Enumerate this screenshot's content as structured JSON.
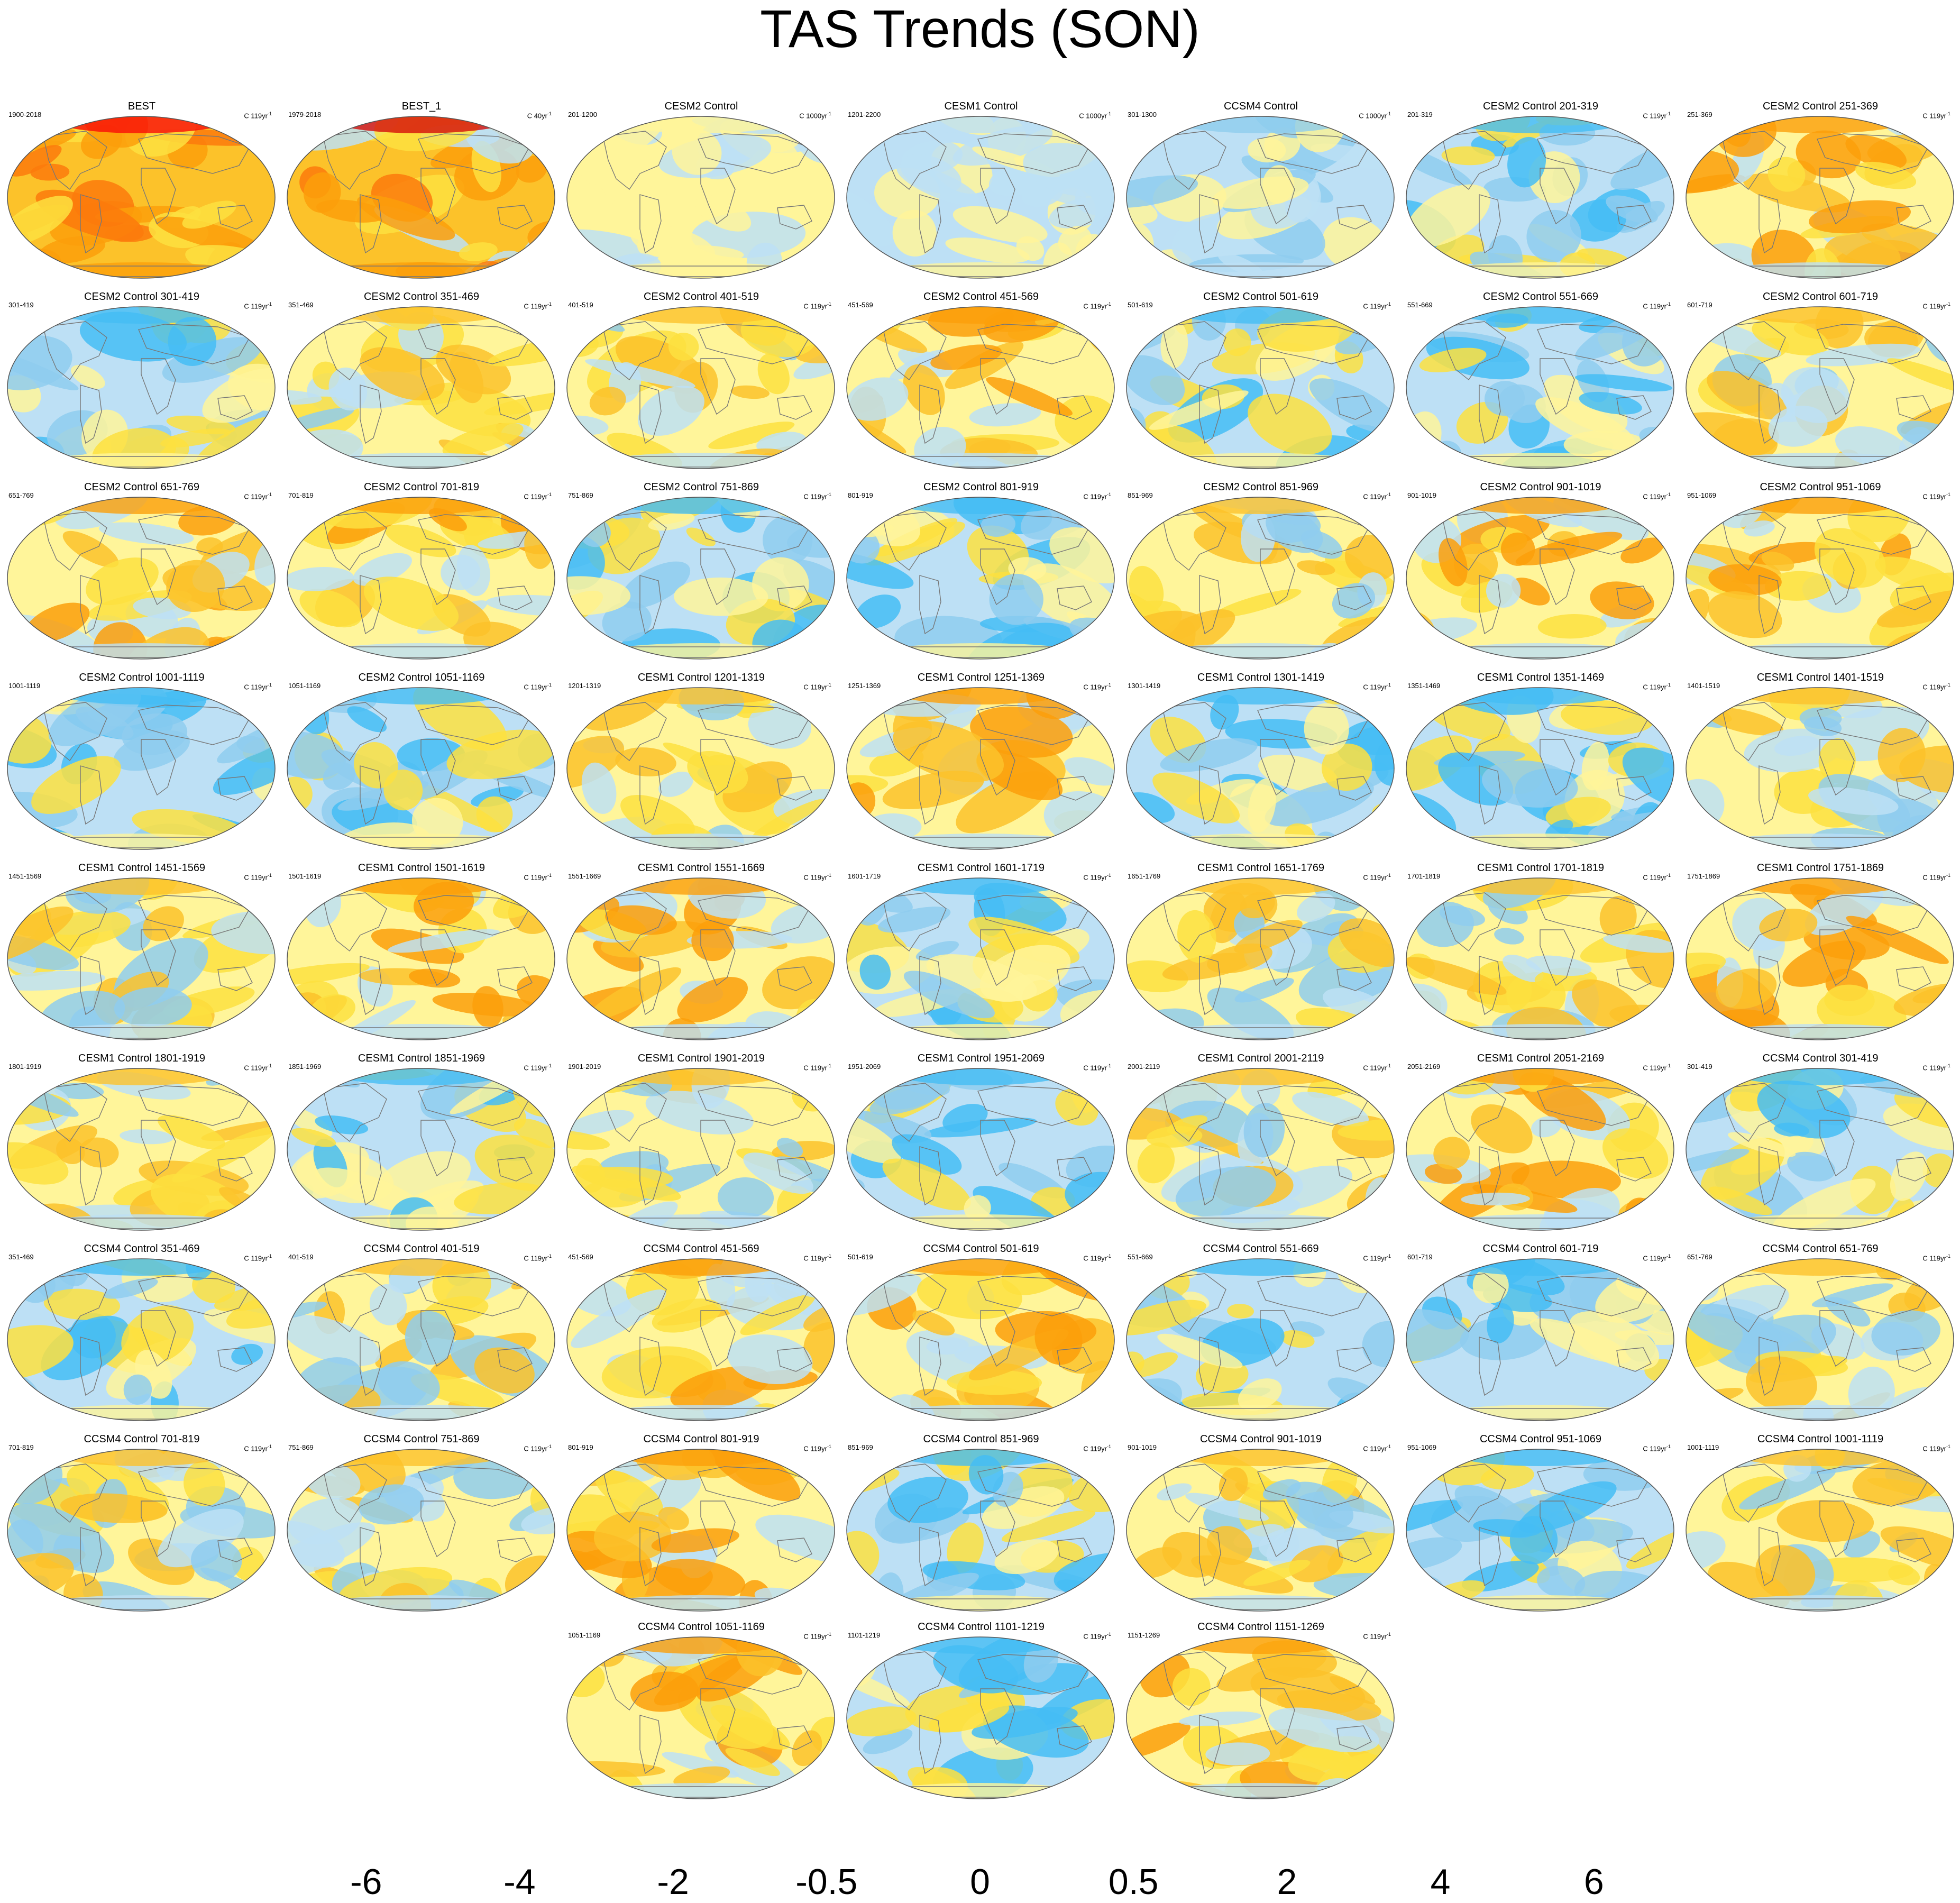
{
  "title": "TAS Trends (SON)",
  "panels": [
    {
      "title": "BEST",
      "left": "1900-2018",
      "right_unit": "C 119yr",
      "fill": "warm-strong"
    },
    {
      "title": "BEST_1",
      "left": "1979-2018",
      "right_unit": "C 40yr",
      "fill": "warm-strong2"
    },
    {
      "title": "CESM2 Control",
      "left": "201-1200",
      "right_unit": "C 1000yr",
      "fill": "pale-yellow"
    },
    {
      "title": "CESM1 Control",
      "left": "1201-2200",
      "right_unit": "C 1000yr",
      "fill": "mixed-pale"
    },
    {
      "title": "CCSM4 Control",
      "left": "301-1300",
      "right_unit": "C 1000yr",
      "fill": "cool-pale"
    },
    {
      "title": "CESM2 Control 201-319",
      "left": "201-319",
      "right_unit": "C 119yr",
      "fill": "cool"
    },
    {
      "title": "CESM2 Control 251-369",
      "left": "251-369",
      "right_unit": "C 119yr",
      "fill": "warmish"
    },
    {
      "title": "CESM2 Control 301-419",
      "left": "301-419",
      "right_unit": "C 119yr",
      "fill": "cool"
    },
    {
      "title": "CESM2 Control 351-469",
      "left": "351-469",
      "right_unit": "C 119yr",
      "fill": "mixed"
    },
    {
      "title": "CESM2 Control 401-519",
      "left": "401-519",
      "right_unit": "C 119yr",
      "fill": "mixed"
    },
    {
      "title": "CESM2 Control 451-569",
      "left": "451-569",
      "right_unit": "C 119yr",
      "fill": "warmish"
    },
    {
      "title": "CESM2 Control 501-619",
      "left": "501-619",
      "right_unit": "C 119yr",
      "fill": "cool"
    },
    {
      "title": "CESM2 Control 551-669",
      "left": "551-669",
      "right_unit": "C 119yr",
      "fill": "cool"
    },
    {
      "title": "CESM2 Control 601-719",
      "left": "601-719",
      "right_unit": "C 119yr",
      "fill": "mixed"
    },
    {
      "title": "CESM2 Control 651-769",
      "left": "651-769",
      "right_unit": "C 119yr",
      "fill": "warmish"
    },
    {
      "title": "CESM2 Control 701-819",
      "left": "701-819",
      "right_unit": "C 119yr",
      "fill": "warmish"
    },
    {
      "title": "CESM2 Control 751-869",
      "left": "751-869",
      "right_unit": "C 119yr",
      "fill": "cool"
    },
    {
      "title": "CESM2 Control 801-919",
      "left": "801-919",
      "right_unit": "C 119yr",
      "fill": "cool"
    },
    {
      "title": "CESM2 Control 851-969",
      "left": "851-969",
      "right_unit": "C 119yr",
      "fill": "mixed"
    },
    {
      "title": "CESM2 Control 901-1019",
      "left": "901-1019",
      "right_unit": "C 119yr",
      "fill": "warmish"
    },
    {
      "title": "CESM2 Control 951-1069",
      "left": "951-1069",
      "right_unit": "C 119yr",
      "fill": "warmish"
    },
    {
      "title": "CESM2 Control 1001-1119",
      "left": "1001-1119",
      "right_unit": "C 119yr",
      "fill": "cool"
    },
    {
      "title": "CESM2 Control 1051-1169",
      "left": "1051-1169",
      "right_unit": "C 119yr",
      "fill": "cool"
    },
    {
      "title": "CESM1 Control 1201-1319",
      "left": "1201-1319",
      "right_unit": "C 119yr",
      "fill": "mixed"
    },
    {
      "title": "CESM1 Control 1251-1369",
      "left": "1251-1369",
      "right_unit": "C 119yr",
      "fill": "warmish"
    },
    {
      "title": "CESM1 Control 1301-1419",
      "left": "1301-1419",
      "right_unit": "C 119yr",
      "fill": "cool"
    },
    {
      "title": "CESM1 Control 1351-1469",
      "left": "1351-1469",
      "right_unit": "C 119yr",
      "fill": "cool"
    },
    {
      "title": "CESM1 Control 1401-1519",
      "left": "1401-1519",
      "right_unit": "C 119yr",
      "fill": "mixed"
    },
    {
      "title": "CESM1 Control 1451-1569",
      "left": "1451-1569",
      "right_unit": "C 119yr",
      "fill": "mixed"
    },
    {
      "title": "CESM1 Control 1501-1619",
      "left": "1501-1619",
      "right_unit": "C 119yr",
      "fill": "warmish"
    },
    {
      "title": "CESM1 Control 1551-1669",
      "left": "1551-1669",
      "right_unit": "C 119yr",
      "fill": "warmish"
    },
    {
      "title": "CESM1 Control 1601-1719",
      "left": "1601-1719",
      "right_unit": "C 119yr",
      "fill": "cool"
    },
    {
      "title": "CESM1 Control 1651-1769",
      "left": "1651-1769",
      "right_unit": "C 119yr",
      "fill": "mixed"
    },
    {
      "title": "CESM1 Control 1701-1819",
      "left": "1701-1819",
      "right_unit": "C 119yr",
      "fill": "mixed"
    },
    {
      "title": "CESM1 Control 1751-1869",
      "left": "1751-1869",
      "right_unit": "C 119yr",
      "fill": "warmish"
    },
    {
      "title": "CESM1 Control 1801-1919",
      "left": "1801-1919",
      "right_unit": "C 119yr",
      "fill": "mixed"
    },
    {
      "title": "CESM1 Control 1851-1969",
      "left": "1851-1969",
      "right_unit": "C 119yr",
      "fill": "cool"
    },
    {
      "title": "CESM1 Control 1901-2019",
      "left": "1901-2019",
      "right_unit": "C 119yr",
      "fill": "mixed"
    },
    {
      "title": "CESM1 Control 1951-2069",
      "left": "1951-2069",
      "right_unit": "C 119yr",
      "fill": "cool"
    },
    {
      "title": "CESM1 Control 2001-2119",
      "left": "2001-2119",
      "right_unit": "C 119yr",
      "fill": "mixed"
    },
    {
      "title": "CESM1 Control 2051-2169",
      "left": "2051-2169",
      "right_unit": "C 119yr",
      "fill": "warmish"
    },
    {
      "title": "CCSM4 Control 301-419",
      "left": "301-419",
      "right_unit": "C 119yr",
      "fill": "cool"
    },
    {
      "title": "CCSM4 Control 351-469",
      "left": "351-469",
      "right_unit": "C 119yr",
      "fill": "cool"
    },
    {
      "title": "CCSM4 Control 401-519",
      "left": "401-519",
      "right_unit": "C 119yr",
      "fill": "mixed"
    },
    {
      "title": "CCSM4 Control 451-569",
      "left": "451-569",
      "right_unit": "C 119yr",
      "fill": "warmish"
    },
    {
      "title": "CCSM4 Control 501-619",
      "left": "501-619",
      "right_unit": "C 119yr",
      "fill": "warmish"
    },
    {
      "title": "CCSM4 Control 551-669",
      "left": "551-669",
      "right_unit": "C 119yr",
      "fill": "cool"
    },
    {
      "title": "CCSM4 Control 601-719",
      "left": "601-719",
      "right_unit": "C 119yr",
      "fill": "cool"
    },
    {
      "title": "CCSM4 Control 651-769",
      "left": "651-769",
      "right_unit": "C 119yr",
      "fill": "mixed"
    },
    {
      "title": "CCSM4 Control 701-819",
      "left": "701-819",
      "right_unit": "C 119yr",
      "fill": "mixed"
    },
    {
      "title": "CCSM4 Control 751-869",
      "left": "751-869",
      "right_unit": "C 119yr",
      "fill": "mixed"
    },
    {
      "title": "CCSM4 Control 801-919",
      "left": "801-919",
      "right_unit": "C 119yr",
      "fill": "warmish"
    },
    {
      "title": "CCSM4 Control 851-969",
      "left": "851-969",
      "right_unit": "C 119yr",
      "fill": "cool"
    },
    {
      "title": "CCSM4 Control 901-1019",
      "left": "901-1019",
      "right_unit": "C 119yr",
      "fill": "mixed"
    },
    {
      "title": "CCSM4 Control 951-1069",
      "left": "951-1069",
      "right_unit": "C 119yr",
      "fill": "cool"
    },
    {
      "title": "CCSM4 Control 1001-1119",
      "left": "1001-1119",
      "right_unit": "C 119yr",
      "fill": "mixed"
    },
    {
      "title": "CCSM4 Control 1051-1169",
      "left": "1051-1169",
      "right_unit": "C 119yr",
      "fill": "warmish"
    },
    {
      "title": "CCSM4 Control 1101-1219",
      "left": "1101-1219",
      "right_unit": "C 119yr",
      "fill": "cool"
    },
    {
      "title": "CCSM4 Control 1151-1269",
      "left": "1151-1269",
      "right_unit": "C 119yr",
      "fill": "warmish"
    }
  ],
  "right_unit_exponent": "-1",
  "colorbar": {
    "colors": [
      "#7b1fe8",
      "#3b14f5",
      "#1a22f0",
      "#3a5ae0",
      "#3f80ea",
      "#2e95f4",
      "#1bb0f6",
      "#45bdf4",
      "#8fcdee",
      "#bde0f5",
      "#fff59a",
      "#fde040",
      "#fcc22a",
      "#fb9f0a",
      "#fb7a0c",
      "#fb4311",
      "#f90a08",
      "#d40c0a",
      "#d83b3b",
      "#fbb1b1"
    ],
    "labels": [
      "-6",
      "-4",
      "-2",
      "-0.5",
      "0",
      "0.5",
      "2",
      "4",
      "6"
    ]
  },
  "palette": {
    "ocean_cool": "#bde0f5",
    "cool_mid": "#8fcdee",
    "cool_strong": "#45bdf4",
    "warm_pale": "#fff59a",
    "warm_mid": "#fde040",
    "warm_strong": "#fcc22a",
    "warm_orange": "#fb9f0a",
    "coast": "#777777"
  }
}
